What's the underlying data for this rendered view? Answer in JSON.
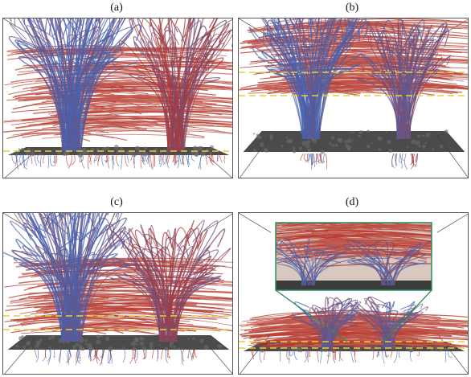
{
  "figure": {
    "panels": [
      {
        "label": "(a)"
      },
      {
        "label": "(b)"
      },
      {
        "label": "(c)"
      },
      {
        "label": "(d)"
      }
    ]
  },
  "colors": {
    "warm_field_lines": "#b5342a",
    "cool_field_lines": "#3f66b8",
    "guide_lines": "#e3d23a",
    "zoom_box_outline": "#2e8b57",
    "surface": "#3c3c3c"
  }
}
